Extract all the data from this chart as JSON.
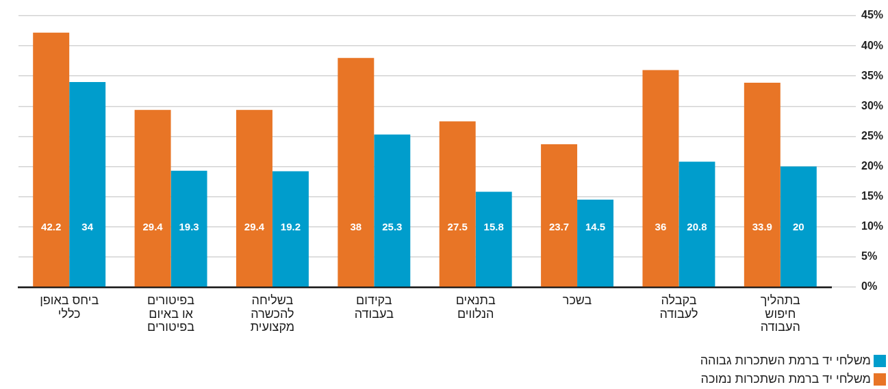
{
  "chart_data": {
    "type": "bar",
    "categories": [
      "ביחס באופן כללי",
      "בפיטורים או באיום בפיטורים",
      "בשליחה להכשרה מקצועית",
      "בקידום בעבודה",
      "בתנאים הנלווים",
      "בשכר",
      "בקבלה לעבודה",
      "בתהליך חיפוש העבודה"
    ],
    "series": [
      {
        "name": "משלחי יד ברמת השתכרות נמוכה",
        "color": "#e87526",
        "values": [
          42.2,
          29.4,
          29.4,
          38,
          27.5,
          23.7,
          36,
          33.9
        ]
      },
      {
        "name": "משלחי יד ברמת השתכרות גבוהה",
        "color": "#009dcc",
        "values": [
          34,
          19.3,
          19.2,
          25.3,
          15.8,
          14.5,
          20.8,
          20
        ]
      }
    ],
    "ylim": [
      0,
      45
    ],
    "yticks": [
      {
        "value": 0,
        "label": "0%"
      },
      {
        "value": 5,
        "label": "5%"
      },
      {
        "value": 10,
        "label": "10%"
      },
      {
        "value": 15,
        "label": "15%"
      },
      {
        "value": 20,
        "label": "20%"
      },
      {
        "value": 25,
        "label": "25%"
      },
      {
        "value": 30,
        "label": "30%"
      },
      {
        "value": 35,
        "label": "35%"
      },
      {
        "value": 40,
        "label": "40%"
      },
      {
        "value": 45,
        "label": "45%"
      }
    ],
    "grid": "y",
    "legend": "bottom right",
    "data_labels": true
  }
}
